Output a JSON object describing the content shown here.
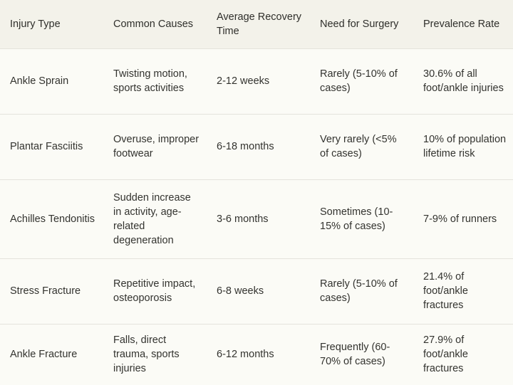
{
  "table": {
    "headers": [
      "Injury Type",
      "Common Causes",
      "Average Recovery Time",
      "Need for Surgery",
      "Prevalence Rate"
    ],
    "rows": [
      [
        "Ankle Sprain",
        "Twisting motion, sports activities",
        "2-12 weeks",
        "Rarely (5-10% of cases)",
        "30.6% of all foot/ankle injuries"
      ],
      [
        "Plantar Fasciitis",
        "Overuse, improper footwear",
        "6-18 months",
        "Very rarely (<5% of cases)",
        "10% of population lifetime risk"
      ],
      [
        "Achilles Tendonitis",
        "Sudden increase in activity, age-related degeneration",
        "3-6 months",
        "Sometimes (10-15% of cases)",
        "7-9% of runners"
      ],
      [
        "Stress Fracture",
        "Repetitive impact, osteoporosis",
        "6-8 weeks",
        "Rarely (5-10% of cases)",
        "21.4% of foot/ankle fractures"
      ],
      [
        "Ankle Fracture",
        "Falls, direct trauma, sports injuries",
        "6-12 months",
        "Frequently (60-70% of cases)",
        "27.9% of foot/ankle fractures"
      ]
    ]
  }
}
